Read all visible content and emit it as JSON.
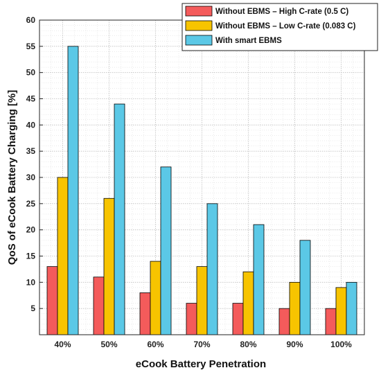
{
  "chart_data": {
    "type": "bar",
    "categories": [
      "40%",
      "50%",
      "60%",
      "70%",
      "80%",
      "90%",
      "100%"
    ],
    "series": [
      {
        "name": "Without EBMS – High C-rate (0.5 C)",
        "color": "#f45b5b",
        "values": [
          13,
          11,
          8,
          6,
          6,
          5,
          5
        ]
      },
      {
        "name": "Without EBMS – Low C-rate (0.083 C)",
        "color": "#f7c400",
        "values": [
          30,
          26,
          14,
          13,
          12,
          10,
          9
        ]
      },
      {
        "name": "With smart EBMS",
        "color": "#5bc8e6",
        "values": [
          55,
          44,
          32,
          25,
          21,
          18,
          10
        ]
      }
    ],
    "xlabel": "eCook Battery Penetration",
    "ylabel": "QoS of eCook Battery Charging [%]",
    "ylim": [
      0,
      60
    ],
    "yticks": [
      5,
      10,
      15,
      20,
      25,
      30,
      35,
      40,
      45,
      50,
      55,
      60
    ],
    "grid": true,
    "legend_position": "top-right"
  }
}
